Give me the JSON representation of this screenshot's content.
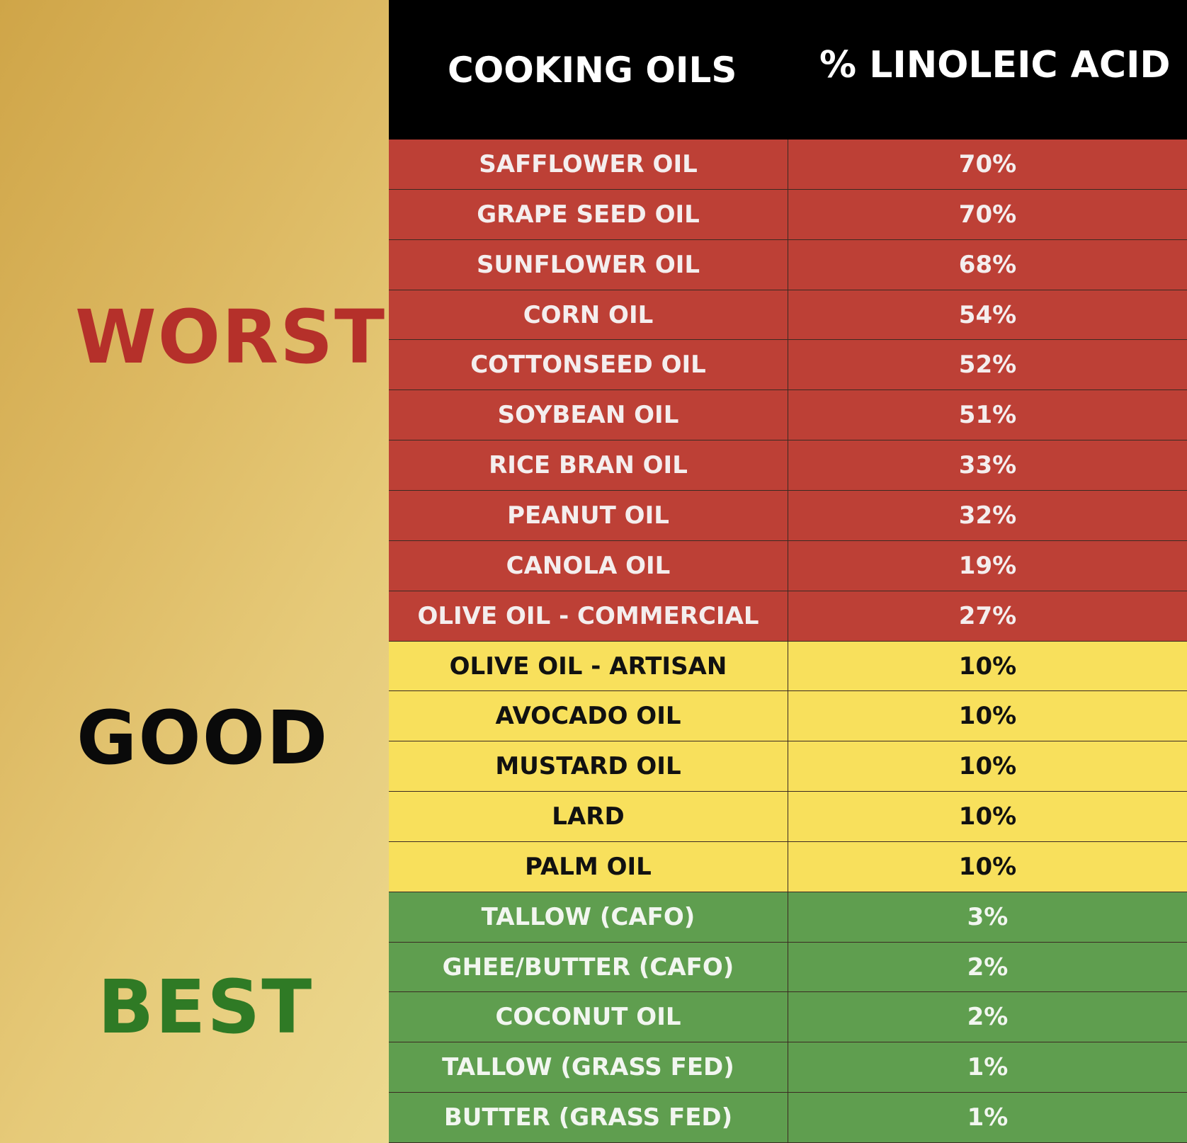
{
  "tiers": {
    "worst": "WORST",
    "good": "GOOD",
    "best": "BEST"
  },
  "header": {
    "col_oils": "COOKING OILS",
    "col_acid": "% LINOLEIC ACID"
  },
  "colors": {
    "worst": "#bd4036",
    "good": "#f8e05c",
    "best": "#5f9e4f",
    "header": "#000000"
  },
  "rows": [
    {
      "name": "SAFFLOWER OIL",
      "pct": "70%",
      "tier": "worst"
    },
    {
      "name": "GRAPE SEED OIL",
      "pct": "70%",
      "tier": "worst"
    },
    {
      "name": "SUNFLOWER OIL",
      "pct": "68%",
      "tier": "worst"
    },
    {
      "name": "CORN OIL",
      "pct": "54%",
      "tier": "worst"
    },
    {
      "name": "COTTONSEED OIL",
      "pct": "52%",
      "tier": "worst"
    },
    {
      "name": "SOYBEAN OIL",
      "pct": "51%",
      "tier": "worst"
    },
    {
      "name": "RICE BRAN OIL",
      "pct": "33%",
      "tier": "worst"
    },
    {
      "name": "PEANUT OIL",
      "pct": "32%",
      "tier": "worst"
    },
    {
      "name": "CANOLA OIL",
      "pct": "19%",
      "tier": "worst"
    },
    {
      "name": "OLIVE OIL - COMMERCIAL",
      "pct": "27%",
      "tier": "worst"
    },
    {
      "name": "OLIVE OIL - ARTISAN",
      "pct": "10%",
      "tier": "good"
    },
    {
      "name": "AVOCADO OIL",
      "pct": "10%",
      "tier": "good"
    },
    {
      "name": "MUSTARD OIL",
      "pct": "10%",
      "tier": "good"
    },
    {
      "name": "LARD",
      "pct": "10%",
      "tier": "good"
    },
    {
      "name": "PALM OIL",
      "pct": "10%",
      "tier": "good"
    },
    {
      "name": "TALLOW (CAFO)",
      "pct": "3%",
      "tier": "best"
    },
    {
      "name": "GHEE/BUTTER (CAFO)",
      "pct": "2%",
      "tier": "best"
    },
    {
      "name": "COCONUT OIL",
      "pct": "2%",
      "tier": "best"
    },
    {
      "name": "TALLOW (GRASS FED)",
      "pct": "1%",
      "tier": "best"
    },
    {
      "name": "BUTTER (GRASS FED)",
      "pct": "1%",
      "tier": "best"
    }
  ]
}
